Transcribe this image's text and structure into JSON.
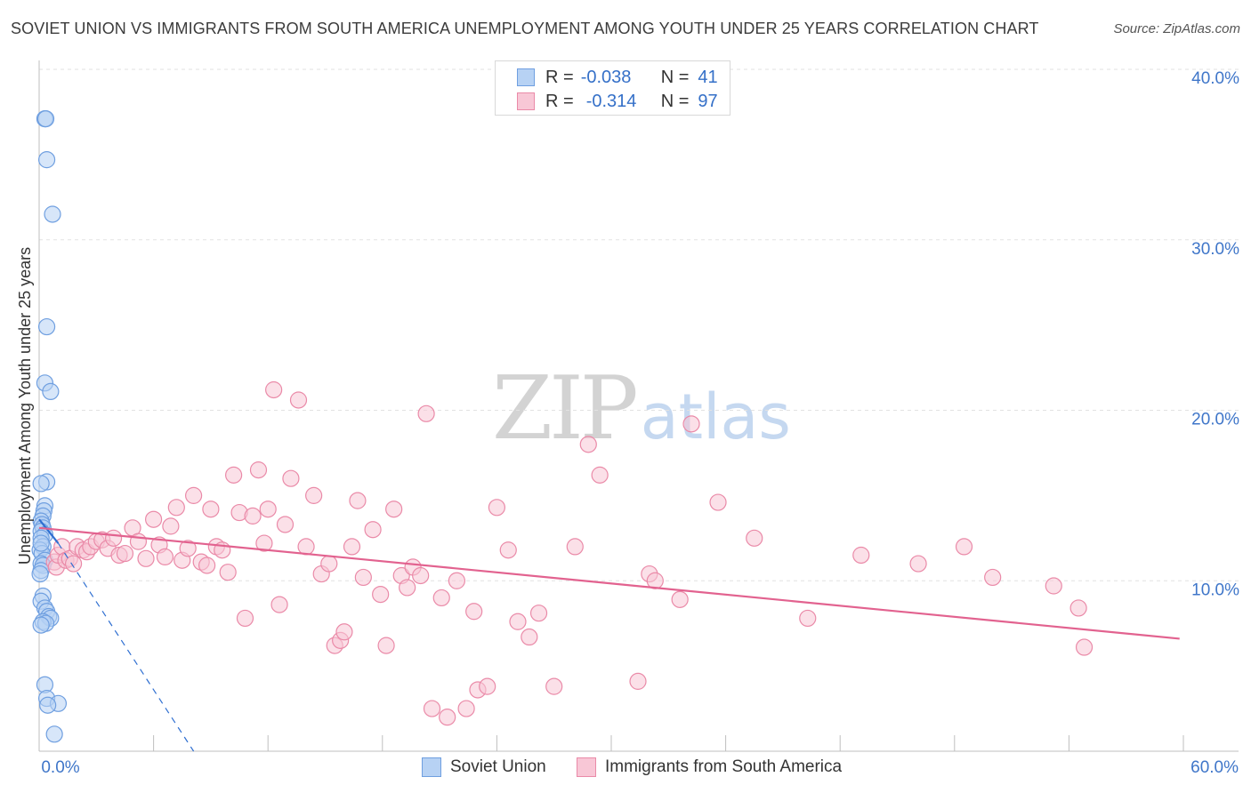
{
  "header": {
    "title": "SOVIET UNION VS IMMIGRANTS FROM SOUTH AMERICA UNEMPLOYMENT AMONG YOUTH UNDER 25 YEARS CORRELATION CHART",
    "source": "Source: ZipAtlas.com"
  },
  "watermark": {
    "zip": "ZIP",
    "atlas": "atlas"
  },
  "legend": {
    "r_label": "R =",
    "n_label": "N =",
    "rows": [
      {
        "name": "Soviet Union",
        "r": "-0.038",
        "n": "41"
      },
      {
        "name": "Immigrants from South America",
        "r": "-0.314",
        "n": "97"
      }
    ]
  },
  "colors": {
    "blue_fill": "#b7d2f4",
    "blue_stroke": "#6f9fe0",
    "blue_line": "#2f6fd1",
    "pink_fill": "#f8c7d6",
    "pink_stroke": "#ea8aa8",
    "pink_line": "#e2628f",
    "grid": "#e2e2e2",
    "tick_label": "#3f76c9"
  },
  "chart_data": {
    "type": "scatter",
    "title": "SOVIET UNION VS IMMIGRANTS FROM SOUTH AMERICA UNEMPLOYMENT AMONG YOUTH UNDER 25 YEARS CORRELATION CHART",
    "xlabel": "",
    "ylabel": "Unemployment Among Youth under 25 years",
    "xlim": [
      0,
      60
    ],
    "ylim": [
      0,
      40
    ],
    "x_tick_labels": [
      "0.0%",
      "60.0%"
    ],
    "y_ticks": [
      10,
      20,
      30,
      40
    ],
    "y_tick_labels": [
      "10.0%",
      "20.0%",
      "30.0%",
      "40.0%"
    ],
    "series": [
      {
        "name": "Soviet Union",
        "color": "blue",
        "points": [
          [
            0.3,
            37.1
          ],
          [
            0.35,
            37.1
          ],
          [
            0.4,
            34.7
          ],
          [
            0.7,
            31.5
          ],
          [
            0.4,
            24.9
          ],
          [
            0.3,
            21.6
          ],
          [
            0.6,
            21.1
          ],
          [
            0.4,
            15.8
          ],
          [
            0.1,
            15.7
          ],
          [
            0.3,
            14.4
          ],
          [
            0.25,
            14.1
          ],
          [
            0.2,
            13.8
          ],
          [
            0.1,
            13.5
          ],
          [
            0.15,
            13.3
          ],
          [
            0.2,
            13.1
          ],
          [
            0.1,
            12.9
          ],
          [
            0.3,
            12.7
          ],
          [
            0.1,
            12.5
          ],
          [
            0.2,
            12.0
          ],
          [
            0.05,
            11.8
          ],
          [
            0.15,
            11.6
          ],
          [
            0.3,
            11.2
          ],
          [
            0.1,
            11.0
          ],
          [
            0.2,
            10.9
          ],
          [
            0.1,
            10.6
          ],
          [
            0.05,
            10.4
          ],
          [
            0.2,
            9.1
          ],
          [
            0.1,
            8.8
          ],
          [
            0.3,
            8.4
          ],
          [
            0.4,
            8.2
          ],
          [
            0.5,
            7.9
          ],
          [
            0.6,
            7.8
          ],
          [
            0.2,
            7.6
          ],
          [
            0.35,
            7.5
          ],
          [
            0.1,
            7.4
          ],
          [
            0.3,
            3.9
          ],
          [
            0.4,
            3.1
          ],
          [
            1.0,
            2.8
          ],
          [
            0.45,
            2.7
          ],
          [
            0.8,
            1.0
          ],
          [
            0.1,
            12.2
          ]
        ],
        "trend_solid": [
          [
            0.0,
            13.6
          ],
          [
            1.0,
            12.2
          ]
        ],
        "trend_dashed": [
          [
            1.0,
            12.2
          ],
          [
            8.1,
            0.0
          ]
        ]
      },
      {
        "name": "Immigrants from South America",
        "color": "pink",
        "points": [
          [
            0.8,
            11.1
          ],
          [
            0.9,
            10.8
          ],
          [
            1.0,
            11.5
          ],
          [
            1.2,
            12.0
          ],
          [
            1.4,
            11.2
          ],
          [
            1.6,
            11.3
          ],
          [
            1.8,
            11.0
          ],
          [
            2.0,
            12.0
          ],
          [
            2.3,
            11.8
          ],
          [
            2.5,
            11.7
          ],
          [
            2.7,
            12.0
          ],
          [
            3.0,
            12.3
          ],
          [
            3.3,
            12.4
          ],
          [
            3.6,
            11.9
          ],
          [
            3.9,
            12.5
          ],
          [
            4.2,
            11.5
          ],
          [
            4.5,
            11.6
          ],
          [
            4.9,
            13.1
          ],
          [
            5.2,
            12.3
          ],
          [
            5.6,
            11.3
          ],
          [
            6.0,
            13.6
          ],
          [
            6.3,
            12.1
          ],
          [
            6.6,
            11.4
          ],
          [
            6.9,
            13.2
          ],
          [
            7.2,
            14.3
          ],
          [
            7.5,
            11.2
          ],
          [
            7.8,
            11.9
          ],
          [
            8.1,
            15.0
          ],
          [
            8.5,
            11.1
          ],
          [
            8.8,
            10.9
          ],
          [
            9.0,
            14.2
          ],
          [
            9.3,
            12.0
          ],
          [
            9.6,
            11.8
          ],
          [
            9.9,
            10.5
          ],
          [
            10.2,
            16.2
          ],
          [
            10.5,
            14.0
          ],
          [
            10.8,
            7.8
          ],
          [
            11.2,
            13.8
          ],
          [
            11.5,
            16.5
          ],
          [
            11.8,
            12.2
          ],
          [
            12.0,
            14.2
          ],
          [
            12.3,
            21.2
          ],
          [
            12.6,
            8.6
          ],
          [
            12.9,
            13.3
          ],
          [
            13.2,
            16.0
          ],
          [
            13.6,
            20.6
          ],
          [
            14.0,
            12.0
          ],
          [
            14.4,
            15.0
          ],
          [
            14.8,
            10.4
          ],
          [
            15.2,
            11.0
          ],
          [
            15.5,
            6.2
          ],
          [
            15.8,
            6.5
          ],
          [
            16.0,
            7.0
          ],
          [
            16.4,
            12.0
          ],
          [
            16.7,
            14.7
          ],
          [
            17.0,
            10.2
          ],
          [
            17.5,
            13.0
          ],
          [
            17.9,
            9.2
          ],
          [
            18.2,
            6.2
          ],
          [
            18.6,
            14.2
          ],
          [
            19.0,
            10.3
          ],
          [
            19.3,
            9.6
          ],
          [
            19.6,
            10.8
          ],
          [
            20.0,
            10.3
          ],
          [
            20.3,
            19.8
          ],
          [
            20.6,
            2.5
          ],
          [
            21.1,
            9.0
          ],
          [
            21.4,
            2.0
          ],
          [
            21.9,
            10.0
          ],
          [
            22.4,
            2.5
          ],
          [
            22.8,
            8.2
          ],
          [
            23.0,
            3.6
          ],
          [
            23.5,
            3.8
          ],
          [
            24.0,
            14.3
          ],
          [
            24.6,
            11.8
          ],
          [
            25.1,
            7.6
          ],
          [
            25.7,
            6.7
          ],
          [
            26.2,
            8.1
          ],
          [
            27.0,
            3.8
          ],
          [
            28.1,
            12.0
          ],
          [
            28.8,
            18.0
          ],
          [
            29.4,
            16.2
          ],
          [
            31.4,
            4.1
          ],
          [
            32.0,
            10.4
          ],
          [
            32.3,
            10.0
          ],
          [
            33.6,
            8.9
          ],
          [
            34.2,
            19.2
          ],
          [
            35.6,
            14.6
          ],
          [
            37.5,
            12.5
          ],
          [
            40.3,
            7.8
          ],
          [
            43.1,
            11.5
          ],
          [
            46.1,
            11.0
          ],
          [
            48.5,
            12.0
          ],
          [
            50.0,
            10.2
          ],
          [
            53.2,
            9.7
          ],
          [
            54.5,
            8.4
          ],
          [
            54.8,
            6.1
          ]
        ],
        "trend_solid": [
          [
            0.0,
            13.1
          ],
          [
            59.8,
            6.6
          ]
        ]
      }
    ]
  }
}
